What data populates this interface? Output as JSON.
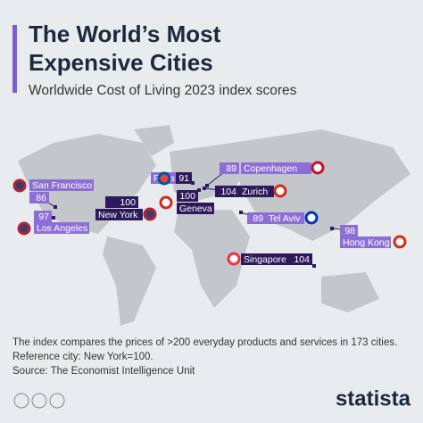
{
  "header": {
    "title": "The World’s Most Expensive Cities",
    "subtitle": "Worldwide Cost of Living 2023 index scores"
  },
  "cities": [
    {
      "name": "San Francisco",
      "value": 86
    },
    {
      "name": "Los Angeles",
      "value": 97
    },
    {
      "name": "New York",
      "value": 100
    },
    {
      "name": "Paris",
      "value": 91
    },
    {
      "name": "Copenhagen",
      "value": 89
    },
    {
      "name": "Zurich",
      "value": 104
    },
    {
      "name": "Geneva",
      "value": 100
    },
    {
      "name": "Tel Aviv",
      "value": 89
    },
    {
      "name": "Hong Kong",
      "value": 98
    },
    {
      "name": "Singapore",
      "value": 104
    }
  ],
  "notes": [
    "The index compares the prices of >200 everyday products and services in 173 cities.",
    "Reference city: New York=100.",
    "Source: The Economist Intelligence Unit"
  ],
  "brand": "statista"
}
